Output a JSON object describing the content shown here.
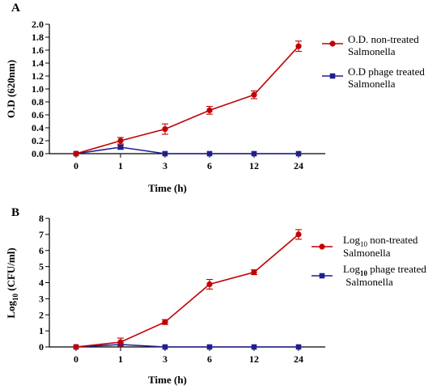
{
  "chart_data": [
    {
      "panel": "A",
      "type": "line",
      "categories": [
        "0",
        "1",
        "3",
        "6",
        "12",
        "24"
      ],
      "xlabel": "Time (h)",
      "ylabel": "O.D (620nm)",
      "ylim": [
        0,
        2.0
      ],
      "yticks": [
        "0.0",
        "0.2",
        "0.4",
        "0.6",
        "0.8",
        "1.0",
        "1.2",
        "1.4",
        "1.6",
        "1.8",
        "2.0"
      ],
      "grid": false,
      "legend_position": "right",
      "series": [
        {
          "name_lines": [
            "O.D. non-treated",
            "Salmonella"
          ],
          "marker": "circle",
          "color": "#c00000",
          "values": [
            0.0,
            0.2,
            0.38,
            0.67,
            0.91,
            1.66
          ],
          "errors": [
            0.0,
            0.05,
            0.08,
            0.06,
            0.06,
            0.08
          ]
        },
        {
          "name_lines": [
            "O.D phage treated",
            "Salmonella"
          ],
          "marker": "square",
          "color": "#1f1f8f",
          "values": [
            0.0,
            0.1,
            0.0,
            0.0,
            0.0,
            0.0
          ],
          "errors": [
            0.0,
            0.03,
            0.0,
            0.0,
            0.0,
            0.0
          ]
        }
      ]
    },
    {
      "panel": "B",
      "type": "line",
      "categories": [
        "0",
        "1",
        "3",
        "6",
        "12",
        "24"
      ],
      "xlabel": "Time (h)",
      "ylabel_main": "Log",
      "ylabel_sub": "10",
      "ylabel_rest": " (CFU/ml)",
      "ylim": [
        0,
        8
      ],
      "yticks": [
        "0",
        "1",
        "2",
        "3",
        "4",
        "5",
        "6",
        "7",
        "8"
      ],
      "grid": false,
      "legend_position": "right",
      "series": [
        {
          "name_main": "Log",
          "name_sub": "10",
          "name_rest": " non-treated",
          "name_line2": "Salmonella",
          "marker": "circle",
          "color": "#c00000",
          "values": [
            0.0,
            0.3,
            1.55,
            3.9,
            4.65,
            7.0
          ],
          "errors": [
            0.0,
            0.25,
            0.15,
            0.3,
            0.15,
            0.3
          ]
        },
        {
          "name_main": "Log",
          "name_sub": "10",
          "name_rest": " phage treated",
          "name_line2": " Salmonella",
          "marker": "square",
          "color": "#1f1f8f",
          "values": [
            0.0,
            0.15,
            0.0,
            0.0,
            0.0,
            0.0
          ],
          "errors": [
            0.0,
            0.1,
            0.0,
            0.0,
            0.0,
            0.0
          ]
        }
      ]
    }
  ]
}
